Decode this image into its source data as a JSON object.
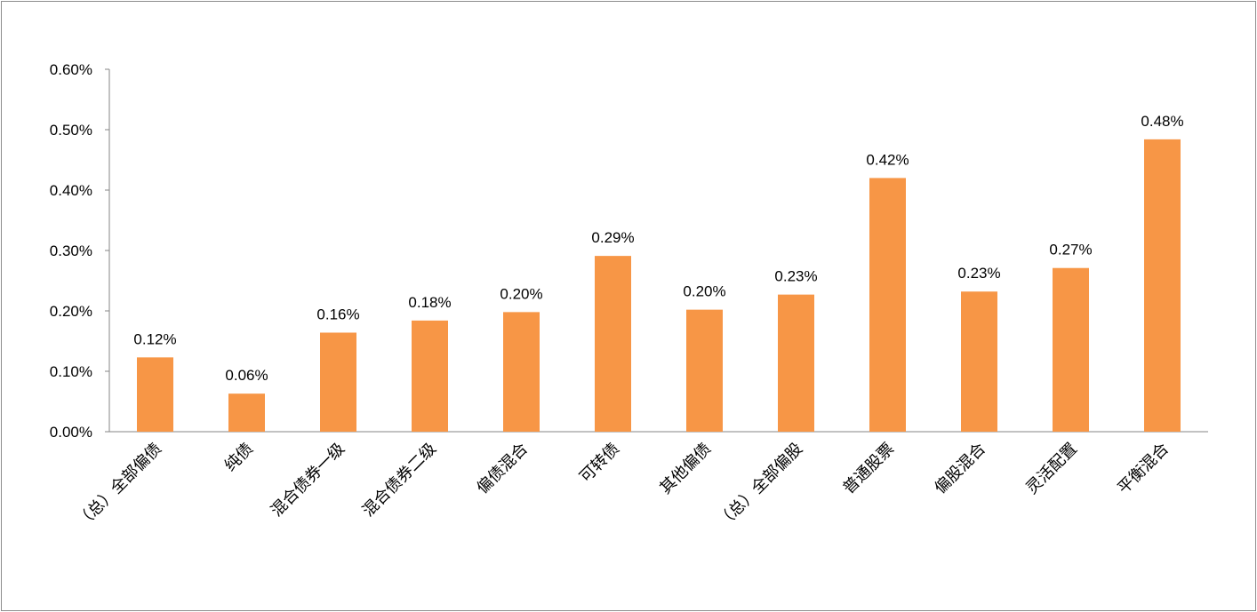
{
  "chart_data": {
    "type": "bar",
    "title": "",
    "xlabel": "",
    "ylabel": "",
    "ylim": [
      0,
      0.6
    ],
    "y_ticks": [
      "0.00%",
      "0.10%",
      "0.20%",
      "0.30%",
      "0.40%",
      "0.50%",
      "0.60%"
    ],
    "grid": false,
    "bar_color": "#F79646",
    "categories": [
      "（总）全部偏债",
      "纯债",
      "混合债券一级",
      "混合债券二级",
      "偏债混合",
      "可转债",
      "其他偏债",
      "（总）全部偏股",
      "普通股票",
      "偏股混合",
      "灵活配置",
      "平衡混合"
    ],
    "values": [
      0.123,
      0.063,
      0.164,
      0.184,
      0.198,
      0.291,
      0.202,
      0.227,
      0.42,
      0.232,
      0.271,
      0.484
    ],
    "data_labels": [
      "0.12%",
      "0.06%",
      "0.16%",
      "0.18%",
      "0.20%",
      "0.29%",
      "0.20%",
      "0.23%",
      "0.42%",
      "0.23%",
      "0.27%",
      "0.48%"
    ]
  }
}
